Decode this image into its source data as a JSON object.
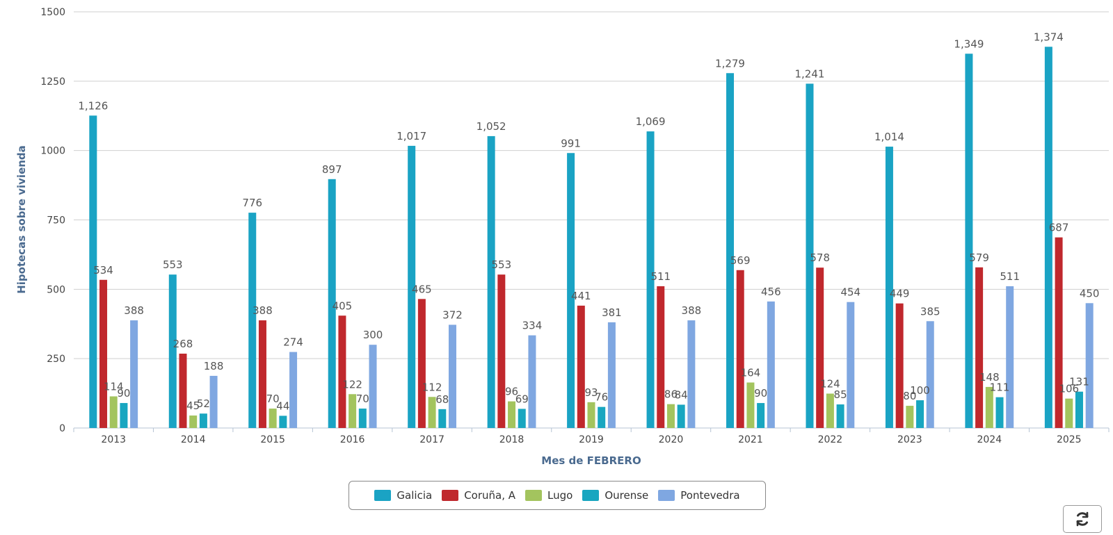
{
  "chart_data": {
    "type": "bar",
    "title": "",
    "xlabel": "Mes de FEBRERO",
    "ylabel": "Hipotecas sobre vivienda",
    "ylim": [
      0,
      1500
    ],
    "yticks": [
      "0",
      "250",
      "500",
      "750",
      "1000",
      "1250",
      "1500"
    ],
    "ytick_values": [
      0,
      250,
      500,
      750,
      1000,
      1250,
      1500
    ],
    "grid": true,
    "legend_position": "bottom-center",
    "categories": [
      "2013",
      "2014",
      "2015",
      "2016",
      "2017",
      "2018",
      "2019",
      "2020",
      "2021",
      "2022",
      "2023",
      "2024",
      "2025"
    ],
    "series": [
      {
        "name": "Galicia",
        "color": "#1aa3c4",
        "values": [
          1126,
          553,
          776,
          897,
          1017,
          1052,
          991,
          1069,
          1279,
          1241,
          1014,
          1349,
          1374
        ],
        "labels": [
          "1,126",
          "553",
          "776",
          "897",
          "1,017",
          "1,052",
          "991",
          "1,069",
          "1,279",
          "1,241",
          "1,014",
          "1,349",
          "1,374"
        ]
      },
      {
        "name": "Coruña, A",
        "color": "#c0282d",
        "values": [
          534,
          268,
          388,
          405,
          465,
          553,
          441,
          511,
          569,
          578,
          449,
          579,
          687
        ],
        "labels": [
          "534",
          "268",
          "388",
          "405",
          "465",
          "553",
          "441",
          "511",
          "569",
          "578",
          "449",
          "579",
          "687"
        ]
      },
      {
        "name": "Lugo",
        "color": "#a3c45e",
        "values": [
          114,
          45,
          70,
          122,
          112,
          96,
          93,
          86,
          164,
          124,
          80,
          148,
          106
        ],
        "labels": [
          "114",
          "45",
          "70",
          "122",
          "112",
          "96",
          "93",
          "86",
          "164",
          "124",
          "80",
          "148",
          "106"
        ]
      },
      {
        "name": "Ourense",
        "color": "#18a6c0",
        "values": [
          90,
          52,
          44,
          70,
          68,
          69,
          76,
          84,
          90,
          85,
          100,
          111,
          131
        ],
        "labels": [
          "90",
          "52",
          "44",
          "70",
          "68",
          "69",
          "76",
          "84",
          "90",
          "85",
          "100",
          "111",
          "131"
        ]
      },
      {
        "name": "Pontevedra",
        "color": "#7fa7e1",
        "values": [
          388,
          188,
          274,
          300,
          372,
          334,
          381,
          388,
          456,
          454,
          385,
          511,
          450
        ],
        "labels": [
          "388",
          "188",
          "274",
          "300",
          "372",
          "334",
          "381",
          "388",
          "456",
          "454",
          "385",
          "511",
          "450"
        ]
      }
    ]
  },
  "controls": {
    "refresh_icon": "refresh-icon"
  }
}
